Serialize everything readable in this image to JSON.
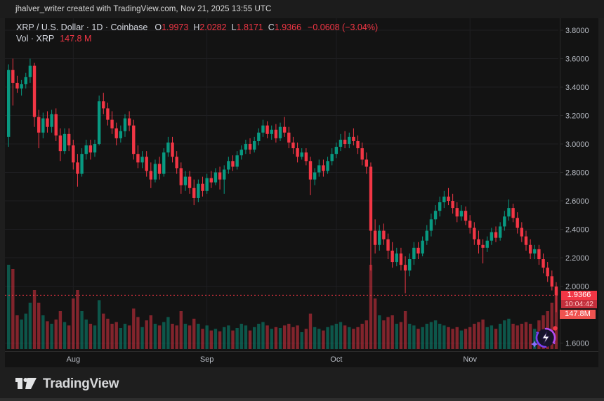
{
  "header": {
    "text": "jhalver_writer created with TradingView.com, Nov 21, 2025 13:55 UTC"
  },
  "legend": {
    "symbol_line": "XRP / U.S. Dollar · 1D · Coinbase",
    "o_label": "O",
    "o_value": "1.9973",
    "h_label": "H",
    "h_value": "2.0282",
    "l_label": "L",
    "l_value": "1.8171",
    "c_label": "C",
    "c_value": "1.9366",
    "change": "−0.0608 (−3.04%)",
    "volume_label": "Vol · XRP",
    "volume_value": "147.8 M"
  },
  "price_scale": {
    "last_price_badge": "1.9366",
    "countdown_badge": "10:04:42",
    "volume_badge": "147.8M"
  },
  "footer": {
    "logo_text": "TradingView"
  },
  "icons": {
    "promo": "lightning-promo-icon",
    "logo": "tradingview-logo-mark"
  },
  "colors": {
    "up": "#089981",
    "down": "#f23645",
    "vol_up": "rgba(8,153,129,0.5)",
    "vol_down": "rgba(242,54,69,0.5)",
    "grid": "#1f1f22",
    "axis_text": "#b9bdc5",
    "axis_line": "#2a2a2a",
    "last_line": "#f23645"
  },
  "chart_data": {
    "type": "candlestick",
    "title": "XRP / U.S. Dollar",
    "interval": "1D",
    "exchange": "Coinbase",
    "ylim": [
      1.6,
      3.8
    ],
    "grid": true,
    "y_ticks": [
      {
        "value": 3.8,
        "label": "3.8000"
      },
      {
        "value": 3.6,
        "label": "3.6000"
      },
      {
        "value": 3.4,
        "label": "3.4000"
      },
      {
        "value": 3.2,
        "label": "3.2000"
      },
      {
        "value": 3.0,
        "label": "3.0000"
      },
      {
        "value": 2.8,
        "label": "2.8000"
      },
      {
        "value": 2.6,
        "label": "2.6000"
      },
      {
        "value": 2.4,
        "label": "2.4000"
      },
      {
        "value": 2.2,
        "label": "2.2000"
      },
      {
        "value": 2.0,
        "label": "2.0000"
      },
      {
        "value": 1.6,
        "label": "1.6000"
      }
    ],
    "x_ticks": [
      {
        "index": 15,
        "label": "Aug"
      },
      {
        "index": 46,
        "label": "Sep"
      },
      {
        "index": 76,
        "label": "Oct"
      },
      {
        "index": 107,
        "label": "Nov"
      }
    ],
    "last": {
      "open": 1.9973,
      "high": 2.0282,
      "low": 1.8171,
      "close": 1.9366,
      "volume_label": "147.8M"
    },
    "volume_max": 100,
    "candles": [
      [
        3.05,
        3.56,
        2.98,
        3.52,
        100
      ],
      [
        3.52,
        3.6,
        3.27,
        3.43,
        95
      ],
      [
        3.43,
        3.48,
        3.36,
        3.39,
        40
      ],
      [
        3.39,
        3.45,
        3.34,
        3.42,
        35
      ],
      [
        3.42,
        3.5,
        3.39,
        3.47,
        42
      ],
      [
        3.47,
        3.6,
        3.43,
        3.55,
        55
      ],
      [
        3.55,
        3.57,
        3.12,
        3.19,
        70
      ],
      [
        3.19,
        3.24,
        2.97,
        3.08,
        55
      ],
      [
        3.08,
        3.22,
        3.04,
        3.18,
        40
      ],
      [
        3.18,
        3.23,
        3.08,
        3.12,
        33
      ],
      [
        3.12,
        3.24,
        3.08,
        3.21,
        30
      ],
      [
        3.21,
        3.25,
        3.02,
        3.06,
        35
      ],
      [
        3.06,
        3.11,
        2.88,
        2.95,
        45
      ],
      [
        2.95,
        3.11,
        2.93,
        3.07,
        32
      ],
      [
        3.07,
        3.11,
        2.95,
        2.99,
        28
      ],
      [
        2.99,
        3.03,
        2.82,
        2.87,
        60
      ],
      [
        2.87,
        2.93,
        2.7,
        2.79,
        70
      ],
      [
        2.79,
        2.97,
        2.77,
        2.93,
        45
      ],
      [
        2.93,
        3.03,
        2.89,
        2.99,
        35
      ],
      [
        2.99,
        3.03,
        2.89,
        2.94,
        30
      ],
      [
        2.94,
        3.03,
        2.91,
        3.0,
        28
      ],
      [
        3.0,
        3.34,
        2.99,
        3.3,
        58
      ],
      [
        3.3,
        3.36,
        3.21,
        3.25,
        42
      ],
      [
        3.25,
        3.29,
        3.13,
        3.17,
        36
      ],
      [
        3.17,
        3.23,
        3.07,
        3.11,
        30
      ],
      [
        3.11,
        3.15,
        2.99,
        3.04,
        32
      ],
      [
        3.04,
        3.13,
        3.01,
        3.09,
        25
      ],
      [
        3.09,
        3.21,
        3.05,
        3.18,
        30
      ],
      [
        3.18,
        3.23,
        3.09,
        3.13,
        28
      ],
      [
        3.13,
        3.17,
        2.89,
        2.93,
        48
      ],
      [
        2.93,
        2.99,
        2.83,
        2.87,
        38
      ],
      [
        2.87,
        2.95,
        2.83,
        2.91,
        26
      ],
      [
        2.91,
        2.95,
        2.77,
        2.81,
        34
      ],
      [
        2.81,
        2.87,
        2.69,
        2.75,
        40
      ],
      [
        2.75,
        2.89,
        2.73,
        2.86,
        30
      ],
      [
        2.86,
        2.91,
        2.75,
        2.79,
        28
      ],
      [
        2.79,
        2.97,
        2.77,
        2.94,
        32
      ],
      [
        2.94,
        3.05,
        2.91,
        3.01,
        38
      ],
      [
        3.01,
        3.05,
        2.87,
        2.91,
        30
      ],
      [
        2.91,
        2.95,
        2.79,
        2.83,
        28
      ],
      [
        2.83,
        2.87,
        2.65,
        2.71,
        45
      ],
      [
        2.71,
        2.81,
        2.67,
        2.77,
        30
      ],
      [
        2.77,
        2.81,
        2.65,
        2.69,
        28
      ],
      [
        2.69,
        2.75,
        2.57,
        2.62,
        36
      ],
      [
        2.62,
        2.75,
        2.59,
        2.72,
        30
      ],
      [
        2.72,
        2.77,
        2.63,
        2.67,
        24
      ],
      [
        2.67,
        2.79,
        2.65,
        2.76,
        28
      ],
      [
        2.76,
        2.81,
        2.69,
        2.73,
        22
      ],
      [
        2.73,
        2.83,
        2.71,
        2.8,
        24
      ],
      [
        2.8,
        2.84,
        2.68,
        2.75,
        21
      ],
      [
        2.75,
        2.85,
        2.65,
        2.82,
        26
      ],
      [
        2.82,
        2.91,
        2.79,
        2.88,
        28
      ],
      [
        2.88,
        2.92,
        2.81,
        2.84,
        22
      ],
      [
        2.84,
        2.95,
        2.82,
        2.92,
        25
      ],
      [
        2.92,
        2.99,
        2.89,
        2.96,
        30
      ],
      [
        2.96,
        3.03,
        2.93,
        3.0,
        28
      ],
      [
        3.0,
        3.04,
        2.93,
        2.96,
        22
      ],
      [
        2.96,
        3.05,
        2.94,
        3.02,
        26
      ],
      [
        3.02,
        3.11,
        2.99,
        3.08,
        30
      ],
      [
        3.08,
        3.17,
        3.05,
        3.13,
        32
      ],
      [
        3.13,
        3.16,
        3.04,
        3.07,
        28
      ],
      [
        3.07,
        3.13,
        3.03,
        3.1,
        24
      ],
      [
        3.1,
        3.14,
        3.01,
        3.04,
        26
      ],
      [
        3.04,
        3.15,
        3.02,
        3.12,
        25
      ],
      [
        3.12,
        3.19,
        3.05,
        3.08,
        28
      ],
      [
        3.08,
        3.12,
        2.97,
        3.01,
        30
      ],
      [
        3.01,
        3.05,
        2.93,
        2.97,
        26
      ],
      [
        2.97,
        3.01,
        2.87,
        2.91,
        28
      ],
      [
        2.91,
        2.97,
        2.89,
        2.94,
        20
      ],
      [
        2.94,
        2.97,
        2.85,
        2.88,
        24
      ],
      [
        2.88,
        2.91,
        2.64,
        2.75,
        42
      ],
      [
        2.75,
        2.83,
        2.71,
        2.8,
        26
      ],
      [
        2.8,
        2.89,
        2.77,
        2.85,
        24
      ],
      [
        2.85,
        2.89,
        2.77,
        2.81,
        22
      ],
      [
        2.81,
        2.91,
        2.79,
        2.88,
        26
      ],
      [
        2.88,
        2.97,
        2.85,
        2.93,
        28
      ],
      [
        2.93,
        3.01,
        2.9,
        2.98,
        30
      ],
      [
        2.98,
        3.07,
        2.95,
        3.03,
        32
      ],
      [
        3.03,
        3.09,
        2.97,
        3.0,
        28
      ],
      [
        3.0,
        3.08,
        2.97,
        3.05,
        26
      ],
      [
        3.05,
        3.11,
        2.99,
        3.02,
        24
      ],
      [
        3.02,
        3.06,
        2.93,
        2.97,
        26
      ],
      [
        2.97,
        3.01,
        2.85,
        2.89,
        30
      ],
      [
        2.89,
        2.94,
        2.79,
        2.84,
        34
      ],
      [
        2.84,
        2.87,
        2.11,
        2.39,
        100
      ],
      [
        2.39,
        2.47,
        2.23,
        2.29,
        60
      ],
      [
        2.29,
        2.43,
        2.25,
        2.39,
        40
      ],
      [
        2.39,
        2.44,
        2.29,
        2.33,
        34
      ],
      [
        2.33,
        2.37,
        2.19,
        2.25,
        38
      ],
      [
        2.25,
        2.31,
        2.13,
        2.17,
        40
      ],
      [
        2.17,
        2.27,
        2.14,
        2.23,
        30
      ],
      [
        2.23,
        2.27,
        2.11,
        2.15,
        32
      ],
      [
        2.15,
        2.21,
        1.95,
        2.11,
        45
      ],
      [
        2.11,
        2.23,
        2.07,
        2.19,
        30
      ],
      [
        2.19,
        2.31,
        2.15,
        2.27,
        28
      ],
      [
        2.27,
        2.31,
        2.19,
        2.23,
        24
      ],
      [
        2.23,
        2.35,
        2.21,
        2.32,
        26
      ],
      [
        2.32,
        2.43,
        2.29,
        2.39,
        30
      ],
      [
        2.39,
        2.51,
        2.35,
        2.47,
        32
      ],
      [
        2.47,
        2.57,
        2.43,
        2.53,
        34
      ],
      [
        2.53,
        2.63,
        2.49,
        2.59,
        30
      ],
      [
        2.59,
        2.67,
        2.55,
        2.63,
        28
      ],
      [
        2.63,
        2.69,
        2.57,
        2.6,
        26
      ],
      [
        2.6,
        2.65,
        2.51,
        2.55,
        24
      ],
      [
        2.55,
        2.59,
        2.45,
        2.49,
        26
      ],
      [
        2.49,
        2.57,
        2.46,
        2.53,
        22
      ],
      [
        2.53,
        2.56,
        2.43,
        2.46,
        24
      ],
      [
        2.46,
        2.5,
        2.37,
        2.41,
        26
      ],
      [
        2.41,
        2.45,
        2.29,
        2.33,
        30
      ],
      [
        2.33,
        2.39,
        2.23,
        2.29,
        32
      ],
      [
        2.29,
        2.33,
        2.16,
        2.27,
        35
      ],
      [
        2.27,
        2.35,
        2.24,
        2.32,
        26
      ],
      [
        2.32,
        2.41,
        2.29,
        2.38,
        28
      ],
      [
        2.38,
        2.42,
        2.31,
        2.34,
        24
      ],
      [
        2.34,
        2.45,
        2.32,
        2.42,
        30
      ],
      [
        2.42,
        2.53,
        2.39,
        2.49,
        34
      ],
      [
        2.49,
        2.61,
        2.46,
        2.55,
        36
      ],
      [
        2.55,
        2.58,
        2.45,
        2.48,
        30
      ],
      [
        2.48,
        2.52,
        2.37,
        2.41,
        28
      ],
      [
        2.41,
        2.45,
        2.31,
        2.35,
        30
      ],
      [
        2.35,
        2.39,
        2.25,
        2.29,
        32
      ],
      [
        2.29,
        2.33,
        2.19,
        2.23,
        30
      ],
      [
        2.23,
        2.29,
        2.19,
        2.26,
        24
      ],
      [
        2.26,
        2.29,
        2.15,
        2.19,
        34
      ],
      [
        2.19,
        2.23,
        2.09,
        2.13,
        40
      ],
      [
        2.13,
        2.17,
        2.03,
        2.07,
        45
      ],
      [
        2.07,
        2.11,
        1.97,
        1.9973,
        55
      ],
      [
        1.9973,
        2.0282,
        1.8171,
        1.9366,
        70
      ]
    ]
  }
}
